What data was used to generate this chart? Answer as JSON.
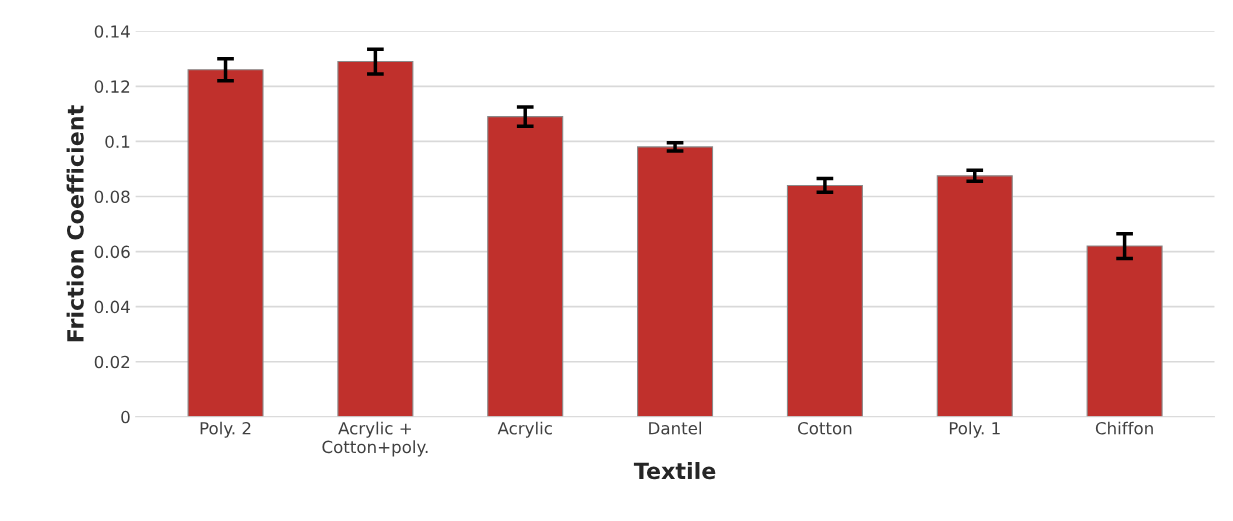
{
  "chart_data": {
    "type": "bar",
    "xlabel": "Textile",
    "ylabel": "Friction Coefficient",
    "categories": [
      "Poly. 2",
      "Acrylic +\nCotton+poly.",
      "Acrylic",
      "Dantel",
      "Cotton",
      "Poly. 1",
      "Chiffon"
    ],
    "values": [
      0.126,
      0.129,
      0.109,
      0.098,
      0.084,
      0.0875,
      0.062
    ],
    "errors": [
      0.004,
      0.0045,
      0.0035,
      0.0015,
      0.0025,
      0.002,
      0.0045
    ],
    "color": "#c0302c",
    "ylim": [
      0,
      0.14
    ],
    "yticks": [
      0,
      0.02,
      0.04,
      {
        "value": 0.06,
        "label": "0.06"
      },
      0.08,
      0.1,
      0.12,
      0.14
    ],
    "grid": "y"
  }
}
